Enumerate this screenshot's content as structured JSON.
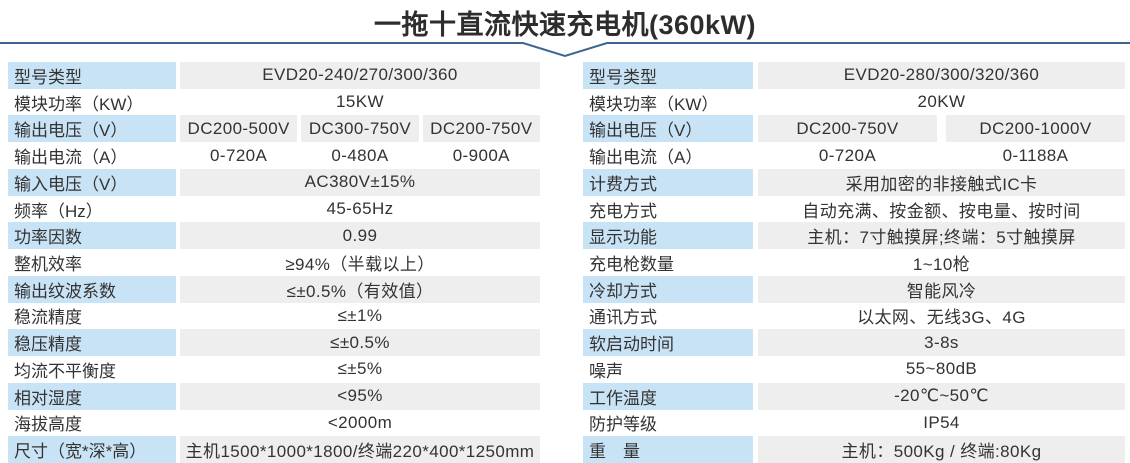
{
  "title": "一拖十直流快速充电机(360kW)",
  "colors": {
    "label_bg": "#c9e3f6",
    "value_bg": "#eeeeee",
    "divider_line": "#3c6594",
    "text": "#333333",
    "title_text": "#2d2d2d"
  },
  "left_table": {
    "rows": [
      {
        "label": "型号类型",
        "values": [
          "EVD20-240/270/300/360"
        ]
      },
      {
        "label": "模块功率（KW）",
        "values": [
          "15KW"
        ]
      },
      {
        "label": "输出电压（V）",
        "values": [
          "DC200-500V",
          "DC300-750V",
          "DC200-750V"
        ]
      },
      {
        "label": "输出电流（A）",
        "values": [
          "0-720A",
          "0-480A",
          "0-900A"
        ]
      },
      {
        "label": "输入电压（V）",
        "values": [
          "AC380V±15%"
        ]
      },
      {
        "label": "频率（Hz）",
        "values": [
          "45-65Hz"
        ]
      },
      {
        "label": "功率因数",
        "values": [
          "0.99"
        ]
      },
      {
        "label": "整机效率",
        "values": [
          "≥94%（半载以上）"
        ]
      },
      {
        "label": "输出纹波系数",
        "values": [
          "≤±0.5%（有效值）"
        ]
      },
      {
        "label": "稳流精度",
        "values": [
          "≤±1%"
        ]
      },
      {
        "label": "稳压精度",
        "values": [
          "≤±0.5%"
        ]
      },
      {
        "label": "均流不平衡度",
        "values": [
          "≤±5%"
        ]
      },
      {
        "label": "相对湿度",
        "values": [
          "<95%"
        ]
      },
      {
        "label": "海拔高度",
        "values": [
          "<2000m"
        ]
      },
      {
        "label": "尺寸（宽*深*高）",
        "values": [
          "主机1500*1000*1800/终端220*400*1250mm"
        ]
      }
    ]
  },
  "right_table": {
    "rows": [
      {
        "label": "型号类型",
        "values": [
          "EVD20-280/300/320/360"
        ]
      },
      {
        "label": "模块功率（KW）",
        "values": [
          "20KW"
        ]
      },
      {
        "label": "输出电压（V）",
        "values": [
          "DC200-750V",
          "DC200-1000V"
        ]
      },
      {
        "label": "输出电流（A）",
        "values": [
          "0-720A",
          "0-1188A"
        ]
      },
      {
        "label": "计费方式",
        "values": [
          "采用加密的非接触式IC卡"
        ]
      },
      {
        "label": "充电方式",
        "values": [
          "自动充满、按金额、按电量、按时间"
        ]
      },
      {
        "label": "显示功能",
        "values": [
          "主机：7寸触摸屏;终端：5寸触摸屏"
        ]
      },
      {
        "label": "充电枪数量",
        "values": [
          "1~10枪"
        ]
      },
      {
        "label": "冷却方式",
        "values": [
          "智能风冷"
        ]
      },
      {
        "label": "通讯方式",
        "values": [
          "以太网、无线3G、4G"
        ]
      },
      {
        "label": "软启动时间",
        "values": [
          "3-8s"
        ]
      },
      {
        "label": "噪声",
        "values": [
          "55~80dB"
        ]
      },
      {
        "label": "工作温度",
        "values": [
          "-20℃~50℃"
        ]
      },
      {
        "label": "防护等级",
        "values": [
          "IP54"
        ]
      },
      {
        "label": "重　量",
        "values": [
          "主机：500Kg / 终端:80Kg"
        ]
      }
    ]
  }
}
